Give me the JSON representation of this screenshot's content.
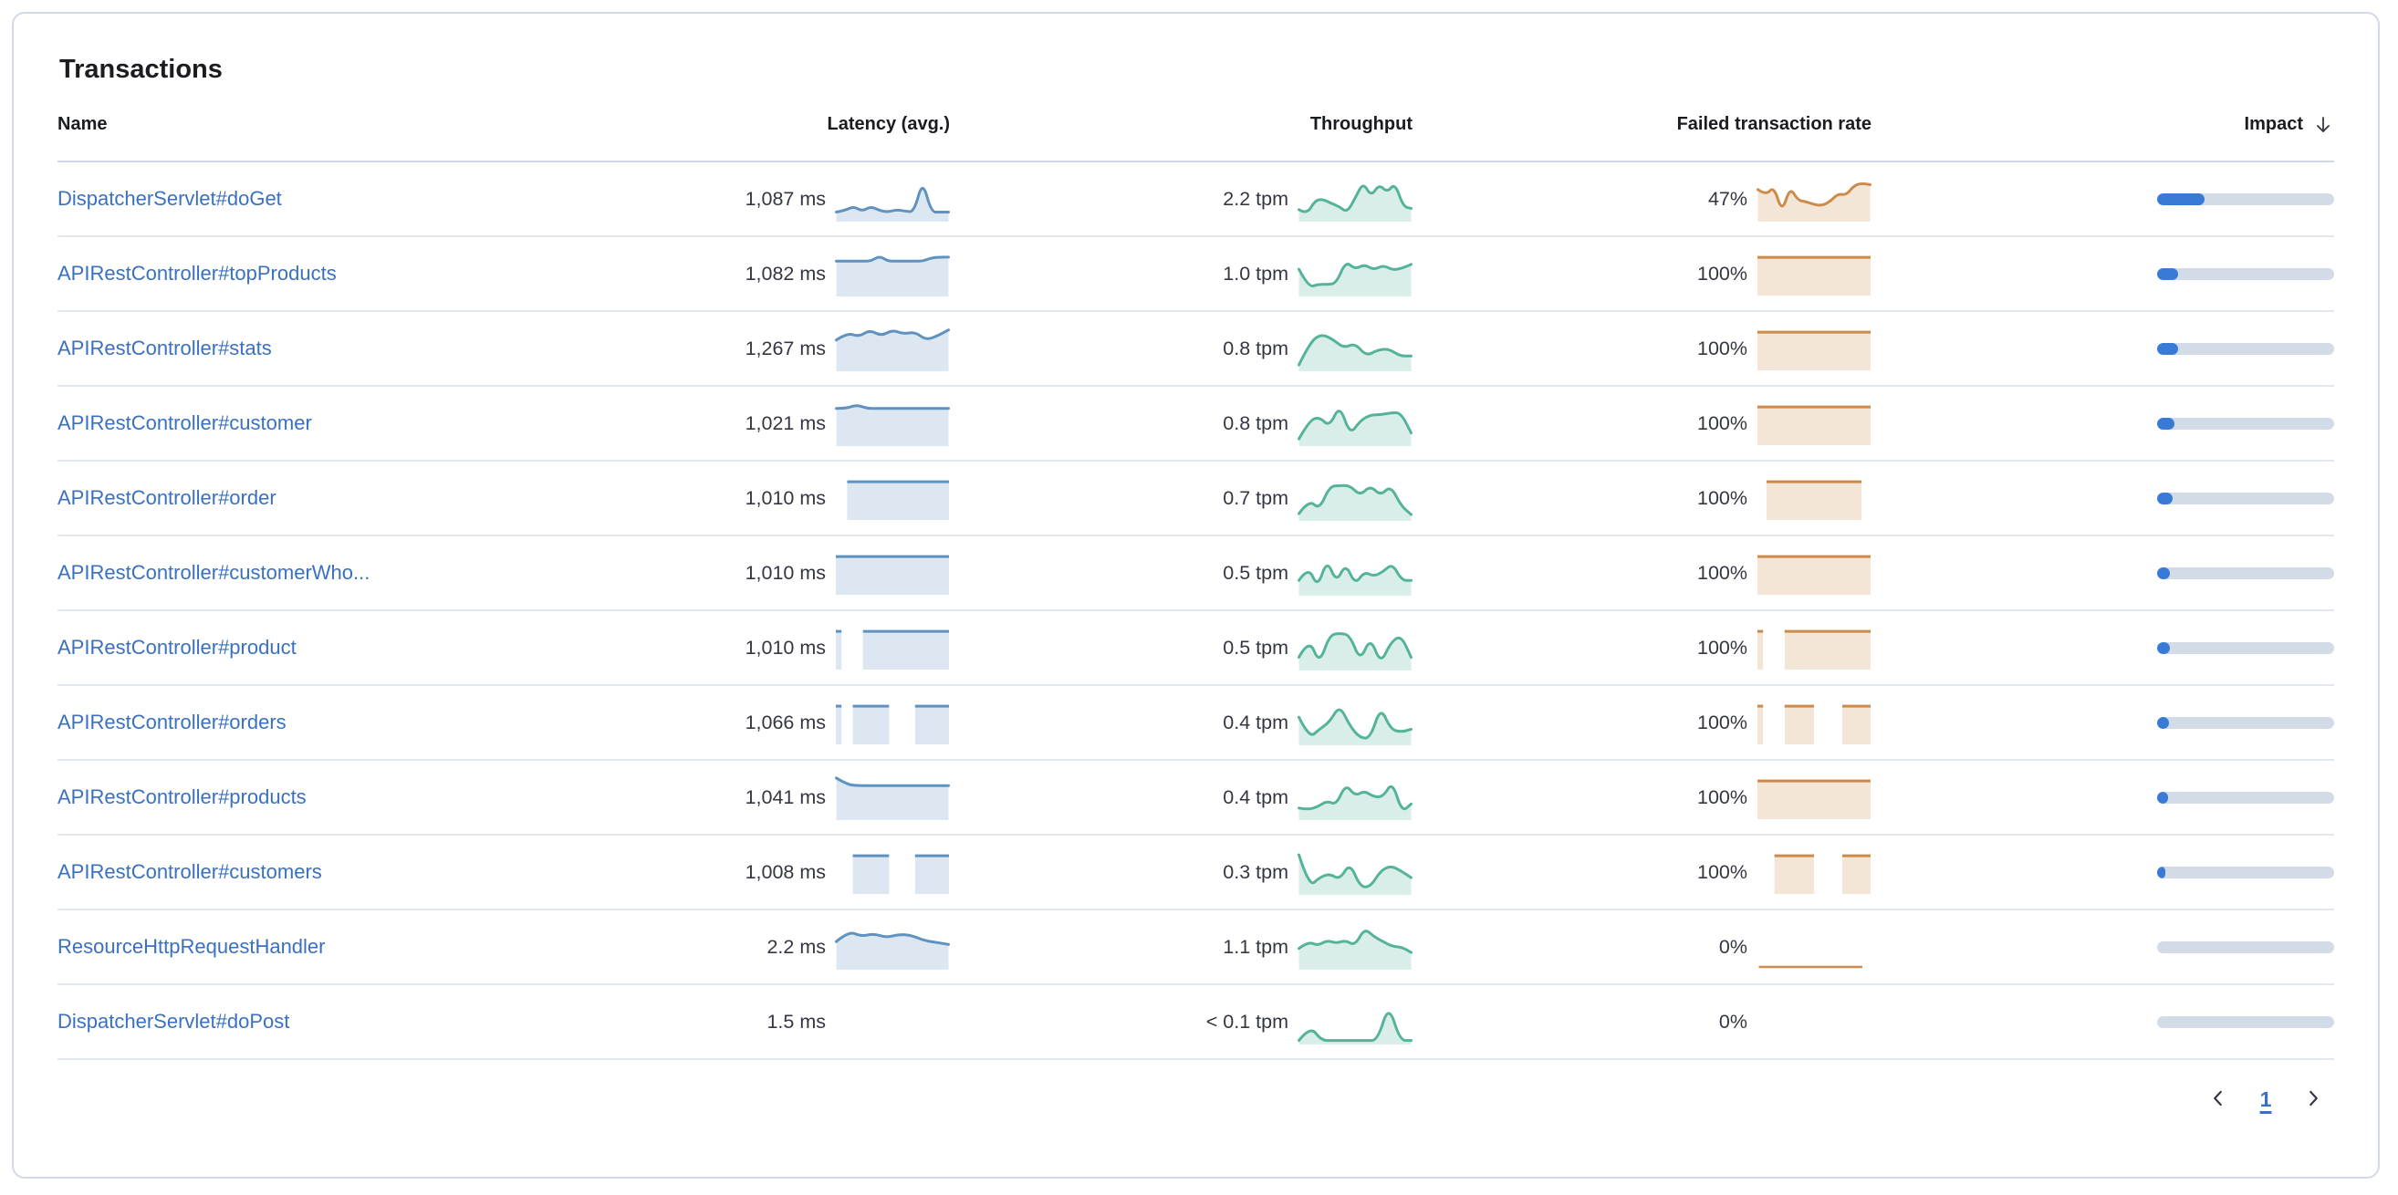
{
  "panel": {
    "title": "Transactions"
  },
  "colors": {
    "latency_spark": "#6092C0",
    "throughput_spark": "#54B399",
    "failed_spark": "#CC8B4A",
    "impact_fill": "#387AD6",
    "impact_track": "#D3DBE6",
    "link": "#3A70C2",
    "border": "#D3DAE6"
  },
  "table": {
    "columns": [
      {
        "label": "Name",
        "align": "left"
      },
      {
        "label": "Latency (avg.)",
        "align": "right"
      },
      {
        "label": "Throughput",
        "align": "right"
      },
      {
        "label": "Failed transaction rate",
        "align": "right"
      },
      {
        "label": "Impact",
        "align": "right",
        "sorted": "desc"
      }
    ],
    "rows": [
      {
        "name": "DispatcherServlet#doGet",
        "latency": "1,087 ms",
        "throughput": "2.2 tpm",
        "failed_rate": "47%",
        "impact_pct": 27,
        "latency_spark": {
          "type": "line",
          "points": [
            0.16,
            0.2,
            0.3,
            0.18,
            0.3,
            0.2,
            0.16,
            0.22,
            0.18,
            0.16,
            0.95,
            0.16,
            0.16,
            0.16
          ]
        },
        "throughput_spark": {
          "type": "line",
          "points": [
            0.22,
            0.1,
            0.45,
            0.48,
            0.38,
            0.3,
            0.15,
            0.5,
            0.9,
            0.55,
            0.85,
            0.65,
            0.88,
            0.3,
            0.25
          ]
        },
        "failed_spark": {
          "type": "line",
          "points": [
            0.72,
            0.58,
            0.8,
            0.15,
            0.78,
            0.45,
            0.42,
            0.35,
            0.32,
            0.42,
            0.62,
            0.58,
            0.82,
            0.88,
            0.84
          ]
        }
      },
      {
        "name": "APIRestController#topProducts",
        "latency": "1,082 ms",
        "throughput": "1.0 tpm",
        "failed_rate": "100%",
        "impact_pct": 12,
        "latency_spark": {
          "type": "line",
          "points": [
            0.8,
            0.8,
            0.8,
            0.8,
            0.8,
            0.93,
            0.8,
            0.8,
            0.8,
            0.8,
            0.8,
            0.88,
            0.9,
            0.9
          ]
        },
        "throughput_spark": {
          "type": "line",
          "points": [
            0.6,
            0.15,
            0.22,
            0.22,
            0.25,
            0.8,
            0.6,
            0.72,
            0.58,
            0.7,
            0.58,
            0.62,
            0.72
          ]
        },
        "failed_spark": {
          "type": "blocks",
          "segments": [
            [
              0,
              1
            ]
          ]
        }
      },
      {
        "name": "APIRestController#stats",
        "latency": "1,267 ms",
        "throughput": "0.8 tpm",
        "failed_rate": "100%",
        "impact_pct": 12,
        "latency_spark": {
          "type": "line",
          "points": [
            0.7,
            0.88,
            0.78,
            0.95,
            0.8,
            0.95,
            0.85,
            0.9,
            0.7,
            0.8,
            0.95
          ]
        },
        "throughput_spark": {
          "type": "line",
          "points": [
            0.08,
            0.65,
            0.85,
            0.72,
            0.5,
            0.62,
            0.3,
            0.45,
            0.48,
            0.3,
            0.3
          ]
        },
        "failed_spark": {
          "type": "blocks",
          "segments": [
            [
              0,
              1
            ]
          ]
        }
      },
      {
        "name": "APIRestController#customer",
        "latency": "1,021 ms",
        "throughput": "0.8 tpm",
        "failed_rate": "100%",
        "impact_pct": 10,
        "latency_spark": {
          "type": "line",
          "points": [
            0.86,
            0.86,
            0.95,
            0.86,
            0.86,
            0.86,
            0.86,
            0.86,
            0.86,
            0.86,
            0.86,
            0.86
          ]
        },
        "throughput_spark": {
          "type": "line",
          "points": [
            0.1,
            0.55,
            0.65,
            0.4,
            0.95,
            0.2,
            0.55,
            0.7,
            0.7,
            0.75,
            0.75,
            0.25
          ]
        },
        "failed_spark": {
          "type": "blocks",
          "segments": [
            [
              0,
              1
            ]
          ]
        }
      },
      {
        "name": "APIRestController#order",
        "latency": "1,010 ms",
        "throughput": "0.7 tpm",
        "failed_rate": "100%",
        "impact_pct": 9,
        "latency_spark": {
          "type": "blocks",
          "segments": [
            [
              0.1,
              1
            ]
          ]
        },
        "throughput_spark": {
          "type": "line",
          "points": [
            0.1,
            0.45,
            0.2,
            0.78,
            0.8,
            0.8,
            0.55,
            0.8,
            0.55,
            0.8,
            0.3,
            0.08
          ]
        },
        "failed_spark": {
          "type": "blocks",
          "segments": [
            [
              0.08,
              0.92
            ]
          ]
        }
      },
      {
        "name": "APIRestController#customerWho...",
        "latency": "1,010 ms",
        "throughput": "0.5 tpm",
        "failed_rate": "100%",
        "impact_pct": 7,
        "latency_spark": {
          "type": "blocks",
          "segments": [
            [
              0,
              1
            ]
          ]
        },
        "throughput_spark": {
          "type": "line",
          "points": [
            0.3,
            0.65,
            0.12,
            0.82,
            0.25,
            0.72,
            0.2,
            0.52,
            0.4,
            0.52,
            0.72,
            0.3,
            0.3
          ]
        },
        "failed_spark": {
          "type": "blocks",
          "segments": [
            [
              0,
              1
            ]
          ]
        }
      },
      {
        "name": "APIRestController#product",
        "latency": "1,010 ms",
        "throughput": "0.5 tpm",
        "failed_rate": "100%",
        "impact_pct": 7,
        "latency_spark": {
          "type": "blocks",
          "segments": [
            [
              0,
              0.05
            ],
            [
              0.24,
              1
            ]
          ]
        },
        "throughput_spark": {
          "type": "line",
          "points": [
            0.25,
            0.72,
            0.08,
            0.8,
            0.85,
            0.8,
            0.15,
            0.75,
            0.08,
            0.62,
            0.8,
            0.25
          ]
        },
        "failed_spark": {
          "type": "blocks",
          "segments": [
            [
              0,
              0.05
            ],
            [
              0.24,
              1
            ]
          ]
        }
      },
      {
        "name": "APIRestController#orders",
        "latency": "1,066 ms",
        "throughput": "0.4 tpm",
        "failed_rate": "100%",
        "impact_pct": 6.5,
        "latency_spark": {
          "type": "blocks",
          "segments": [
            [
              0,
              0.05
            ],
            [
              0.15,
              0.47
            ],
            [
              0.7,
              1
            ]
          ]
        },
        "throughput_spark": {
          "type": "line",
          "points": [
            0.62,
            0.1,
            0.32,
            0.5,
            0.92,
            0.4,
            0.1,
            0.1,
            0.88,
            0.32,
            0.25,
            0.32
          ]
        },
        "failed_spark": {
          "type": "blocks",
          "segments": [
            [
              0,
              0.05
            ],
            [
              0.24,
              0.5
            ],
            [
              0.75,
              1
            ]
          ]
        }
      },
      {
        "name": "APIRestController#products",
        "latency": "1,041 ms",
        "throughput": "0.4 tpm",
        "failed_rate": "100%",
        "impact_pct": 6,
        "latency_spark": {
          "type": "line",
          "points": [
            0.97,
            0.8,
            0.78,
            0.78,
            0.78,
            0.78,
            0.78,
            0.78,
            0.78,
            0.78,
            0.78
          ]
        },
        "throughput_spark": {
          "type": "line",
          "points": [
            0.22,
            0.18,
            0.25,
            0.4,
            0.3,
            0.82,
            0.52,
            0.65,
            0.5,
            0.5,
            0.88,
            0.12,
            0.32
          ]
        },
        "failed_spark": {
          "type": "blocks",
          "segments": [
            [
              0,
              1
            ]
          ]
        }
      },
      {
        "name": "APIRestController#customers",
        "latency": "1,008 ms",
        "throughput": "0.3 tpm",
        "failed_rate": "100%",
        "impact_pct": 4.5,
        "latency_spark": {
          "type": "blocks",
          "segments": [
            [
              0.15,
              0.47
            ],
            [
              0.7,
              1
            ]
          ]
        },
        "throughput_spark": {
          "type": "line",
          "points": [
            0.92,
            0.12,
            0.35,
            0.45,
            0.3,
            0.72,
            0.12,
            0.12,
            0.52,
            0.65,
            0.52,
            0.35
          ]
        },
        "failed_spark": {
          "type": "blocks",
          "segments": [
            [
              0.15,
              0.5
            ],
            [
              0.75,
              1
            ]
          ]
        }
      },
      {
        "name": "ResourceHttpRequestHandler",
        "latency": "2.2 ms",
        "throughput": "1.1 tpm",
        "failed_rate": "0%",
        "impact_pct": 0,
        "latency_spark": {
          "type": "line",
          "points": [
            0.62,
            0.88,
            0.75,
            0.82,
            0.72,
            0.8,
            0.78,
            0.65,
            0.6,
            0.55
          ]
        },
        "throughput_spark": {
          "type": "line",
          "points": [
            0.45,
            0.62,
            0.52,
            0.65,
            0.58,
            0.65,
            0.52,
            0.95,
            0.75,
            0.62,
            0.5,
            0.48,
            0.35
          ]
        },
        "failed_spark": {
          "type": "baseline",
          "from": 0.02,
          "to": 0.92
        }
      },
      {
        "name": "DispatcherServlet#doPost",
        "latency": "1.5 ms",
        "throughput": "< 0.1 tpm",
        "failed_rate": "0%",
        "impact_pct": 0,
        "latency_spark": null,
        "throughput_spark": {
          "type": "line",
          "points": [
            0.02,
            0.38,
            0.02,
            0.02,
            0.02,
            0.02,
            0.02,
            0.02,
            0.92,
            0.02,
            0.02
          ]
        },
        "failed_spark": null
      }
    ]
  },
  "pagination": {
    "current_page": "1"
  }
}
